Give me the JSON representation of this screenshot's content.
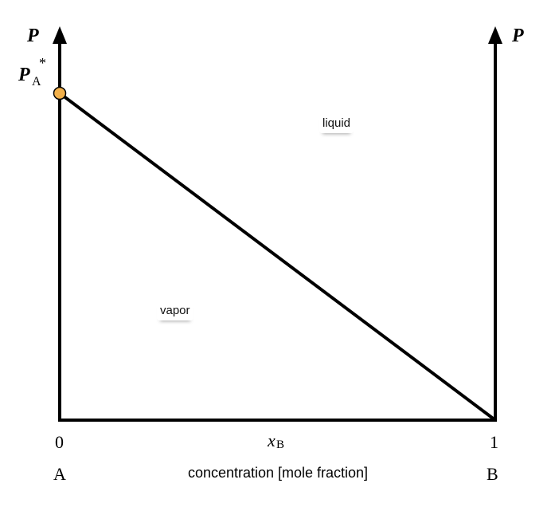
{
  "diagram": {
    "axis_left_label": "P",
    "axis_right_label": "P",
    "pressure_point_label": {
      "main": "P",
      "subscript": "A",
      "superscript": "*"
    },
    "x_tick_start": "0",
    "x_tick_end": "1",
    "x_variable": {
      "main": "x",
      "subscript": "B"
    },
    "component_left": "A",
    "component_right": "B",
    "x_axis_title": "concentration [mole fraction]",
    "region_upper": "liquid",
    "region_lower": "vapor",
    "colors": {
      "line": "#000000",
      "marker_fill": "#F2B04A",
      "marker_stroke": "#000000"
    }
  }
}
